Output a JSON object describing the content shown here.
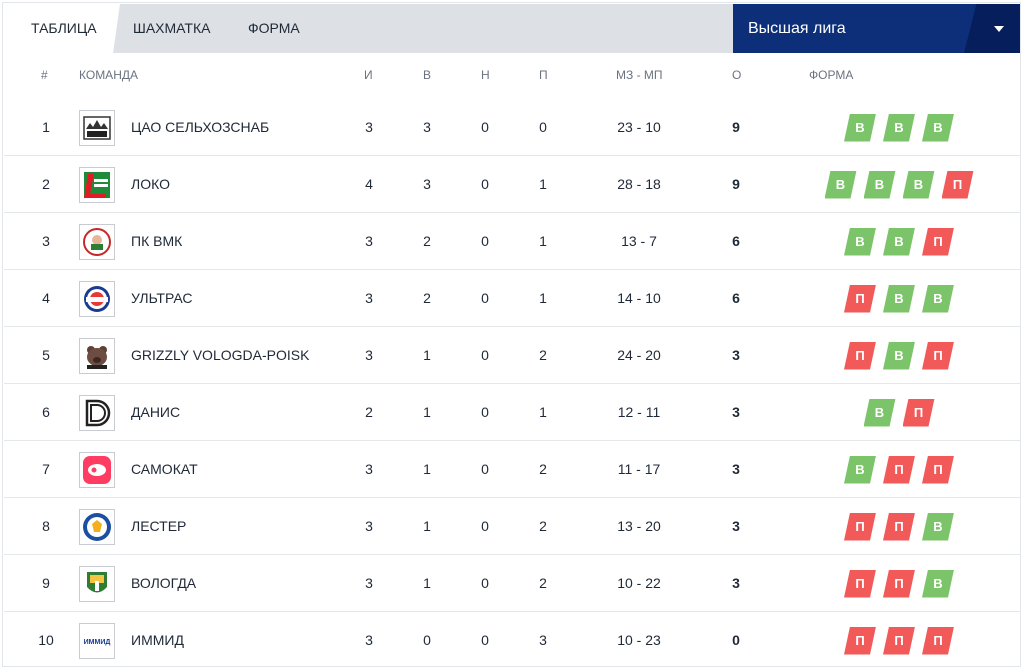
{
  "tabs": [
    {
      "label": "ТАБЛИЦА",
      "active": true
    },
    {
      "label": "ШАХМАТКА",
      "active": false
    },
    {
      "label": "ФОРМА",
      "active": false
    }
  ],
  "league_select": {
    "value": "Высшая лига"
  },
  "columns": {
    "num": "#",
    "team": "КОМАНДА",
    "games": "И",
    "wins": "В",
    "draws": "Н",
    "losses": "П",
    "goals": "МЗ - МП",
    "points": "О",
    "form": "ФОРМА"
  },
  "colors": {
    "win": "#7cc46a",
    "loss": "#f25a5a",
    "league_bg": "#0d2f7a"
  },
  "rows": [
    {
      "num": "1",
      "logo": "tsao-logo",
      "name": "ЦАО СЕЛЬХОЗСНАБ",
      "games": "3",
      "wins": "3",
      "draws": "0",
      "losses": "0",
      "goals": "23 - 10",
      "points": "9",
      "form": [
        "В",
        "В",
        "В"
      ]
    },
    {
      "num": "2",
      "logo": "loko-logo",
      "name": "ЛОКО",
      "games": "4",
      "wins": "3",
      "draws": "0",
      "losses": "1",
      "goals": "28 - 18",
      "points": "9",
      "form": [
        "В",
        "В",
        "В",
        "П"
      ]
    },
    {
      "num": "3",
      "logo": "pk-vmk-logo",
      "name": "ПК ВМК",
      "games": "3",
      "wins": "2",
      "draws": "0",
      "losses": "1",
      "goals": "13 - 7",
      "points": "6",
      "form": [
        "В",
        "В",
        "П"
      ]
    },
    {
      "num": "4",
      "logo": "ultras-logo",
      "name": "УЛЬТРАС",
      "games": "3",
      "wins": "2",
      "draws": "0",
      "losses": "1",
      "goals": "14 - 10",
      "points": "6",
      "form": [
        "П",
        "В",
        "В"
      ]
    },
    {
      "num": "5",
      "logo": "grizzly-logo",
      "name": "GRIZZLY VOLOGDA-POISK",
      "games": "3",
      "wins": "1",
      "draws": "0",
      "losses": "2",
      "goals": "24 - 20",
      "points": "3",
      "form": [
        "П",
        "В",
        "П"
      ]
    },
    {
      "num": "6",
      "logo": "danis-logo",
      "name": "ДАНИС",
      "games": "2",
      "wins": "1",
      "draws": "0",
      "losses": "1",
      "goals": "12 - 11",
      "points": "3",
      "form": [
        "В",
        "П"
      ]
    },
    {
      "num": "7",
      "logo": "samokat-logo",
      "name": "САМОКАТ",
      "games": "3",
      "wins": "1",
      "draws": "0",
      "losses": "2",
      "goals": "11 - 17",
      "points": "3",
      "form": [
        "В",
        "П",
        "П"
      ]
    },
    {
      "num": "8",
      "logo": "lester-logo",
      "name": "ЛЕСТЕР",
      "games": "3",
      "wins": "1",
      "draws": "0",
      "losses": "2",
      "goals": "13 - 20",
      "points": "3",
      "form": [
        "П",
        "П",
        "В"
      ]
    },
    {
      "num": "9",
      "logo": "vologda-logo",
      "name": "ВОЛОГДА",
      "games": "3",
      "wins": "1",
      "draws": "0",
      "losses": "2",
      "goals": "10 - 22",
      "points": "3",
      "form": [
        "П",
        "П",
        "В"
      ]
    },
    {
      "num": "10",
      "logo": "immid-logo",
      "name": "ИММИД",
      "games": "3",
      "wins": "0",
      "draws": "0",
      "losses": "3",
      "goals": "10 - 23",
      "points": "0",
      "form": [
        "П",
        "П",
        "П"
      ]
    }
  ]
}
